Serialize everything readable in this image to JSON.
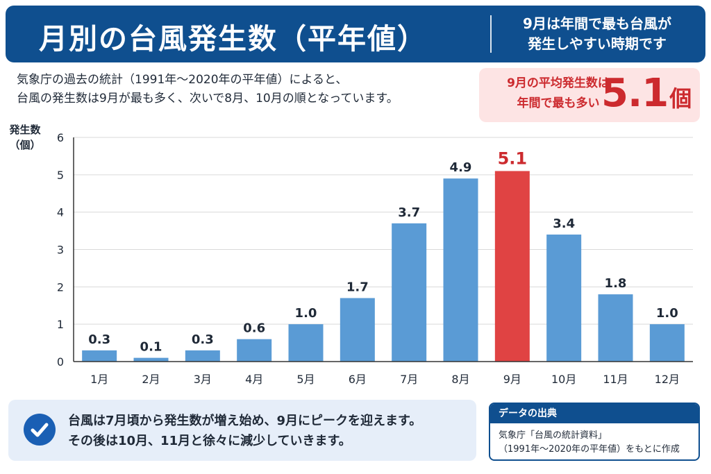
{
  "header": {
    "title": "月別の台風発生数（平年値）",
    "subtitle_line1": "9月は年間で最も台風が",
    "subtitle_line2": "発生しやすい時期です"
  },
  "intro": {
    "line1": "気象庁の過去の統計（1991年〜2020年の平年値）によると、",
    "line2": "台風の発生数は9月が最も多く、次いで8月、10月の順となっています。"
  },
  "callout": {
    "line1": "9月の平均発生数は",
    "line2": "年間で最も多い",
    "value": "5.1",
    "unit": "個"
  },
  "axis": {
    "ylabel_line1": "発生数",
    "ylabel_line2": "（個）"
  },
  "colors": {
    "bar": "#5a9bd5",
    "highlight": "#e04343",
    "highlight_label": "#cc2a2e",
    "navy": "#0f4f8f"
  },
  "chart_data": {
    "type": "bar",
    "categories": [
      "1月",
      "2月",
      "3月",
      "4月",
      "5月",
      "6月",
      "7月",
      "8月",
      "9月",
      "10月",
      "11月",
      "12月"
    ],
    "values": [
      0.3,
      0.1,
      0.3,
      0.6,
      1.0,
      1.7,
      3.7,
      4.9,
      5.1,
      3.4,
      1.8,
      1.0
    ],
    "value_labels": [
      "0.3",
      "0.1",
      "0.3",
      "0.6",
      "1.0",
      "1.7",
      "3.7",
      "4.9",
      "5.1",
      "3.4",
      "1.8",
      "1.0"
    ],
    "highlight_index": 8,
    "ylabel": "発生数（個）",
    "ylim": [
      0,
      6
    ],
    "yticks": [
      0,
      1,
      2,
      3,
      4,
      5,
      6
    ],
    "grid": true
  },
  "footnote": {
    "line1": "台風は7月頃から発生数が増え始め、9月にピークを迎えます。",
    "line2": "その後は10月、11月と徐々に減少していきます。",
    "icon": "check-circle-icon"
  },
  "source": {
    "heading": "データの出典",
    "line1": "気象庁「台風の統計資料」",
    "line2": "（1991年〜2020年の平年値）をもとに作成"
  }
}
